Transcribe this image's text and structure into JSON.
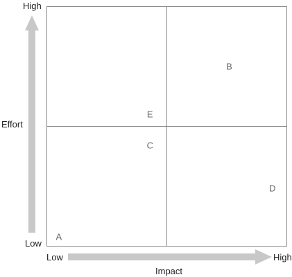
{
  "y_axis": {
    "title": "Effort",
    "high_label": "High",
    "low_label": "Low"
  },
  "x_axis": {
    "title": "Impact",
    "low_label": "Low",
    "high_label": "High"
  },
  "colors": {
    "grid_line": "#8a8a8a",
    "arrow": "#c8c8c8",
    "point_label": "#666666",
    "axis_text": "#222222"
  },
  "points": [
    {
      "label": "A",
      "impact": 0.05,
      "effort": 0.04
    },
    {
      "label": "B",
      "impact": 0.76,
      "effort": 0.75
    },
    {
      "label": "C",
      "impact": 0.43,
      "effort": 0.42
    },
    {
      "label": "D",
      "impact": 0.94,
      "effort": 0.24
    },
    {
      "label": "E",
      "impact": 0.43,
      "effort": 0.55
    }
  ]
}
